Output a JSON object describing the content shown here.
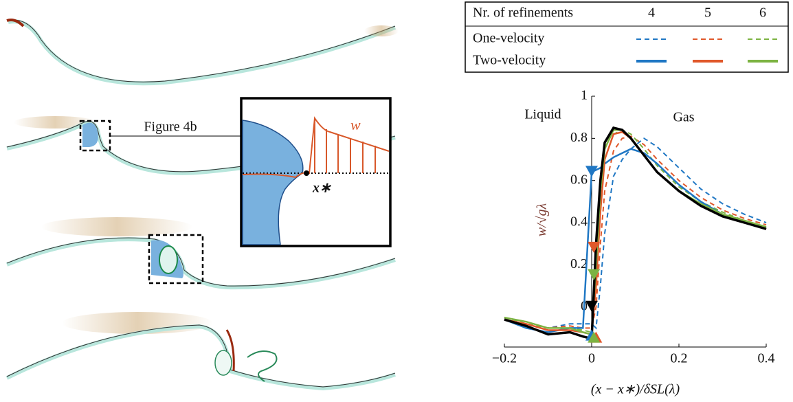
{
  "illustration": {
    "callout": "Figure 4b",
    "inset_labels": [
      "w",
      "x∗"
    ]
  },
  "chart_data": {
    "type": "line",
    "legend": {
      "header": "Nr. of refinements",
      "columns": [
        "4",
        "5",
        "6"
      ],
      "rows": [
        "One-velocity",
        "Two-velocity"
      ]
    },
    "annotations": [
      "Liquid",
      "Gas"
    ],
    "x_label": "(x − x∗)/δSL(λ)",
    "y_label": "w/√gλ",
    "xlim": [
      -0.2,
      0.4
    ],
    "ylim": [
      -0.19,
      1
    ],
    "xticks": [
      {
        "value": -0.2,
        "label": "−0.2"
      },
      0,
      0.2,
      0.4
    ],
    "yticks": [
      0,
      0.2,
      0.4,
      0.6,
      0.8,
      1
    ],
    "x": [
      -0.2,
      -0.15,
      -0.1,
      -0.05,
      -0.02,
      0,
      0.01,
      0.02,
      0.03,
      0.05,
      0.07,
      0.09,
      0.12,
      0.15,
      0.2,
      0.25,
      0.3,
      0.35,
      0.4
    ],
    "series": [
      {
        "color": "#1f77c4",
        "dash": true,
        "values": [
          -0.05,
          -0.08,
          -0.1,
          -0.08,
          -0.08,
          -0.08,
          -0.1,
          0.1,
          0.35,
          0.62,
          0.7,
          0.75,
          0.8,
          0.76,
          0.66,
          0.56,
          0.49,
          0.44,
          0.4
        ]
      },
      {
        "color": "#e0582a",
        "dash": true,
        "values": [
          -0.05,
          -0.08,
          -0.1,
          -0.09,
          -0.1,
          -0.1,
          0,
          0.3,
          0.55,
          0.74,
          0.8,
          0.81,
          0.77,
          0.7,
          0.6,
          0.52,
          0.46,
          0.42,
          0.39
        ]
      },
      {
        "color": "#7cb342",
        "dash": true,
        "values": [
          -0.05,
          -0.08,
          -0.1,
          -0.1,
          -0.11,
          -0.12,
          0.1,
          0.45,
          0.7,
          0.82,
          0.84,
          0.82,
          0.75,
          0.67,
          0.57,
          0.5,
          0.45,
          0.41,
          0.38
        ]
      },
      {
        "color": "#1f77c4",
        "dash": false,
        "values": [
          -0.06,
          -0.1,
          -0.12,
          -0.1,
          -0.1,
          0.64,
          0.65,
          0.66,
          0.68,
          0.71,
          0.73,
          0.75,
          0.73,
          0.68,
          0.58,
          0.5,
          0.44,
          0.4,
          0.37
        ]
      },
      {
        "color": "#e0582a",
        "dash": false,
        "values": [
          -0.06,
          -0.08,
          -0.11,
          -0.11,
          -0.12,
          -0.13,
          0.1,
          0.45,
          0.7,
          0.82,
          0.83,
          0.8,
          0.72,
          0.64,
          0.55,
          0.48,
          0.43,
          0.4,
          0.37
        ]
      },
      {
        "color": "#7cb342",
        "dash": false,
        "values": [
          -0.05,
          -0.07,
          -0.1,
          -0.1,
          -0.12,
          -0.13,
          0.2,
          0.55,
          0.75,
          0.84,
          0.84,
          0.8,
          0.72,
          0.64,
          0.55,
          0.49,
          0.44,
          0.41,
          0.38
        ]
      },
      {
        "color": "#000000",
        "dash": false,
        "values": [
          -0.06,
          -0.09,
          -0.13,
          -0.12,
          -0.14,
          -0.15,
          0.3,
          0.6,
          0.78,
          0.85,
          0.84,
          0.8,
          0.72,
          0.64,
          0.55,
          0.48,
          0.43,
          0.4,
          0.37
        ]
      }
    ],
    "markers": [
      {
        "shape": "down",
        "color": "#1f77c4",
        "x": 0,
        "y": 0.64
      },
      {
        "shape": "down",
        "color": "#e0582a",
        "x": 0.005,
        "y": 0.28
      },
      {
        "shape": "down",
        "color": "#7cb342",
        "x": 0.005,
        "y": 0.15
      },
      {
        "shape": "down",
        "color": "#000000",
        "x": 0,
        "y": 0
      },
      {
        "shape": "up",
        "color": "#1f77c4",
        "x": 0,
        "y": -0.13
      },
      {
        "shape": "up",
        "color": "#e0582a",
        "x": 0.01,
        "y": -0.14
      },
      {
        "shape": "up",
        "color": "#7cb342",
        "x": 0.005,
        "y": -0.14
      }
    ]
  }
}
